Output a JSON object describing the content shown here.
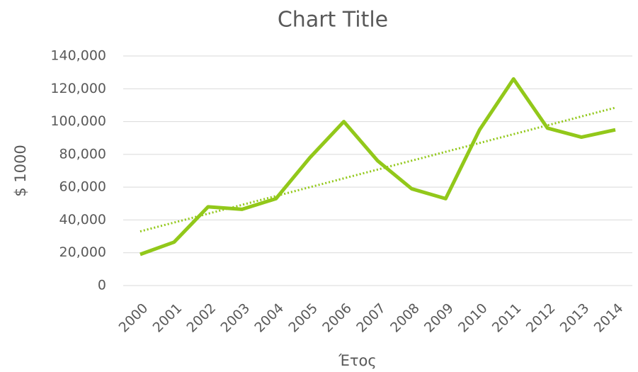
{
  "chart_data": {
    "type": "line",
    "title": "Chart Title",
    "x_label": "Έτος",
    "y_label": "$ 1000",
    "categories": [
      "2000",
      "2001",
      "2002",
      "2003",
      "2004",
      "2005",
      "2006",
      "2007",
      "2008",
      "2009",
      "2010",
      "2011",
      "2012",
      "2013",
      "2014"
    ],
    "series": [
      {
        "name": "$ 1000",
        "color": "#92c81a",
        "values": [
          19000,
          26500,
          48000,
          46500,
          53000,
          78000,
          100000,
          76000,
          59000,
          53000,
          95000,
          126000,
          96000,
          90500,
          95000
        ]
      }
    ],
    "trendline": {
      "type": "linear",
      "style": "dotted"
    },
    "ylim": [
      0,
      140000
    ],
    "yticks": [
      0,
      {
        "value": 20000,
        "label": "20,000"
      },
      {
        "value": 40000,
        "label": "40,000"
      },
      {
        "value": 60000,
        "label": "60,000"
      },
      {
        "value": 80000,
        "label": "80,000"
      },
      {
        "value": 100000,
        "label": "100,000"
      },
      {
        "value": 120000,
        "label": "120,000"
      },
      {
        "value": 140000,
        "label": "140,000"
      }
    ],
    "grid": true
  }
}
